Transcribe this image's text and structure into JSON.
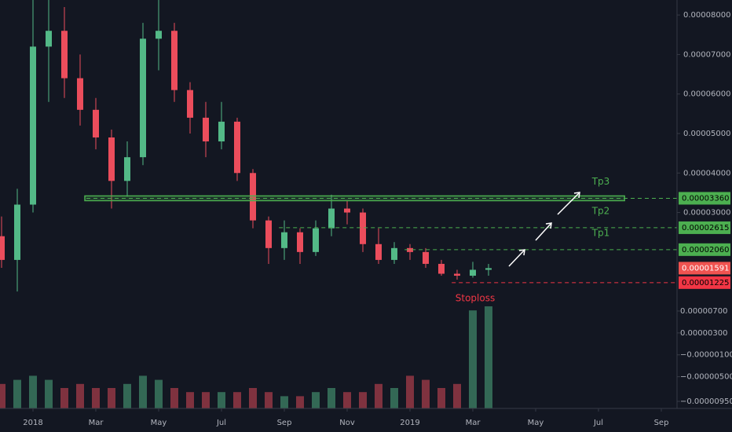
{
  "chart_data": {
    "type": "candlestick",
    "x": [
      -1,
      -0.5,
      0,
      0.5,
      1,
      1.5,
      2,
      2.5,
      3,
      3.5,
      4,
      4.5,
      5,
      5.5,
      6,
      6.5,
      7,
      7.5,
      8,
      8.5,
      9,
      9.5,
      10,
      10.5,
      11,
      11.5,
      12,
      12.5,
      13,
      13.5,
      14,
      14.5
    ],
    "open": [
      2.4e-05,
      1.8e-05,
      3.2e-05,
      7.2e-05,
      7.6e-05,
      6.4e-05,
      5.6e-05,
      4.9e-05,
      3.8e-05,
      4.4e-05,
      7.4e-05,
      7.6e-05,
      6.1e-05,
      5.4e-05,
      4.8e-05,
      5.3e-05,
      4e-05,
      2.8e-05,
      2.1e-05,
      2.5e-05,
      2e-05,
      2.6e-05,
      3.1e-05,
      3e-05,
      2.2e-05,
      1.8e-05,
      2.1e-05,
      2e-05,
      1.7e-05,
      1.45e-05,
      1.4e-05,
      1.55e-05
    ],
    "high": [
      2.9e-05,
      3.6e-05,
      8.4e-05,
      8.4e-05,
      8.2e-05,
      7e-05,
      5.9e-05,
      5.1e-05,
      4.8e-05,
      7.8e-05,
      8.4e-05,
      7.8e-05,
      6.3e-05,
      5.8e-05,
      5.8e-05,
      5.4e-05,
      4.1e-05,
      2.9e-05,
      2.8e-05,
      2.6e-05,
      2.8e-05,
      3.45e-05,
      3.3e-05,
      3.1e-05,
      2.6e-05,
      2.25e-05,
      2.2e-05,
      2.1e-05,
      1.8e-05,
      1.55e-05,
      1.75e-05,
      1.7e-05
    ],
    "low": [
      1.6e-05,
      1e-05,
      3e-05,
      5.8e-05,
      5.9e-05,
      5.2e-05,
      4.6e-05,
      3.1e-05,
      3.4e-05,
      4.2e-05,
      6.6e-05,
      5.8e-05,
      5e-05,
      4.4e-05,
      4.6e-05,
      3.8e-05,
      2.6e-05,
      1.7e-05,
      1.8e-05,
      1.7e-05,
      1.9e-05,
      2.4e-05,
      2.7e-05,
      2e-05,
      1.7e-05,
      1.7e-05,
      1.8e-05,
      1.6e-05,
      1.4e-05,
      1.3e-05,
      1.35e-05,
      1.4e-05
    ],
    "close": [
      1.8e-05,
      3.2e-05,
      7.2e-05,
      7.6e-05,
      6.4e-05,
      5.6e-05,
      4.9e-05,
      3.8e-05,
      4.4e-05,
      7.4e-05,
      7.6e-05,
      6.1e-05,
      5.4e-05,
      4.8e-05,
      5.3e-05,
      4e-05,
      2.8e-05,
      2.1e-05,
      2.5e-05,
      2e-05,
      2.6e-05,
      3.1e-05,
      3e-05,
      2.2e-05,
      1.8e-05,
      2.1e-05,
      2e-05,
      1.7e-05,
      1.45e-05,
      1.4e-05,
      1.55e-05,
      1.591e-05
    ],
    "volume": [
      6,
      7,
      8,
      7,
      5,
      6,
      5,
      5,
      6,
      8,
      7,
      5,
      4,
      4,
      4,
      4,
      5,
      4,
      3,
      3,
      4,
      5,
      4,
      4,
      6,
      5,
      8,
      7,
      5,
      6,
      24,
      25
    ],
    "up_color": "#53b987",
    "down_color": "#eb4d5c",
    "xlim": [
      -1.05,
      20.5
    ],
    "xticks": [
      {
        "value": 0,
        "label": "2018"
      },
      {
        "value": 2,
        "label": "Mar"
      },
      {
        "value": 4,
        "label": "May"
      },
      {
        "value": 6,
        "label": "Jul"
      },
      {
        "value": 8,
        "label": "Sep"
      },
      {
        "value": 10,
        "label": "Nov"
      },
      {
        "value": 12,
        "label": "2019"
      },
      {
        "value": 14,
        "label": "Mar"
      },
      {
        "value": 16,
        "label": "May"
      },
      {
        "value": 18,
        "label": "Jul"
      },
      {
        "value": 20,
        "label": "Sep"
      }
    ],
    "ylim": [
      -1.96e-05,
      8.38e-05
    ],
    "yticks": [
      {
        "value": 8e-05,
        "label": "0.00008000"
      },
      {
        "value": 7e-05,
        "label": "0.00007000"
      },
      {
        "value": 6e-05,
        "label": "0.00006000"
      },
      {
        "value": 5e-05,
        "label": "0.00005000"
      },
      {
        "value": 4e-05,
        "label": "0.00004000"
      },
      {
        "value": 3e-05,
        "label": "0.00003000"
      }
    ],
    "volume_lim": [
      0,
      100
    ],
    "y2lim": [
      -1.079e-05,
      6.38e-05
    ],
    "y2ticks": [
      {
        "value": 7e-06,
        "label": "0.00000700"
      },
      {
        "value": 3e-06,
        "label": "0.00000300"
      },
      {
        "value": -1e-06,
        "label": "−0.00000100"
      },
      {
        "value": -5e-06,
        "label": "−0.00000500"
      },
      {
        "value": -9.5e-06,
        "label": "−0.00000950"
      }
    ],
    "zone": {
      "x": [
        1.65,
        18.83
      ],
      "y": [
        3.3e-05,
        3.42e-05
      ],
      "color": "#4caf50"
    },
    "levels": [
      {
        "name": "Tp3",
        "value": 3.36e-05,
        "label": "0.00003360",
        "start": 1.7,
        "color": "#4caf50"
      },
      {
        "name": "Tp2",
        "value": 2.615e-05,
        "label": "0.00002615",
        "start": 7.83,
        "color": "#4caf50"
      },
      {
        "name": "Tp1",
        "value": 2.06e-05,
        "label": "0.00002060",
        "start": 11.83,
        "color": "#4caf50"
      },
      {
        "name": "Stoploss",
        "value": 1.225e-05,
        "label": "0.00001225",
        "start": 13.33,
        "color": "#f23645"
      }
    ],
    "current": {
      "value": 1.591e-05,
      "label": "0.00001591",
      "color": "#ef5350"
    }
  }
}
